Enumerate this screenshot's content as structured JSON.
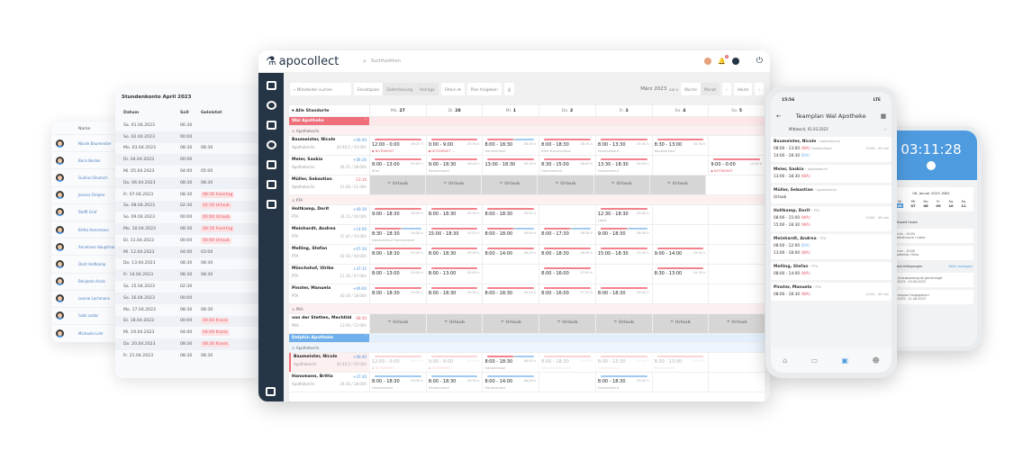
{
  "names_card": {
    "header": "Name",
    "items": [
      "Nicole Baumeister",
      "Boris Becker",
      "Gudrun Deutsch",
      "Jessica Fimpler",
      "Steffi Graf",
      "Britta Hansmann",
      "Anneliese Hauptmann",
      "Dorit Holtkamp",
      "Benjamin Krols",
      "Leonie Lachmann",
      "Gabi Ledac",
      "Michaela Lehr"
    ]
  },
  "stundenkonto": {
    "title": "Stundenkonto April 2023",
    "columns": [
      "Datum",
      "Soll",
      "Geleistet"
    ],
    "rows": [
      [
        "Sa. 01.04.2023",
        "06:30",
        ""
      ],
      [
        "So. 02.04.2023",
        "00:00",
        ""
      ],
      [
        "Mo. 03.04.2023",
        "08:30",
        "08:30"
      ],
      [
        "Di. 04.04.2023",
        "00:00",
        ""
      ],
      [
        "Mi. 05.04.2023",
        "04:00",
        "05:00"
      ],
      [
        "Do. 06.04.2023",
        "08:30",
        "08:30"
      ],
      [
        "Fr. 07.04.2023",
        "08:30",
        "08:30 Feiertag"
      ],
      [
        "Sa. 08.04.2023",
        "02:30",
        "02:30 Urlaub"
      ],
      [
        "So. 09.04.2023",
        "00:00",
        "00:00 Urlaub"
      ],
      [
        "Mo. 10.04.2023",
        "08:30",
        "08:30 Feiertag"
      ],
      [
        "Di. 11.04.2023",
        "00:00",
        "00:00 Urlaub"
      ],
      [
        "Mi. 12.04.2023",
        "04:00",
        "03:00"
      ],
      [
        "Do. 13.04.2023",
        "08:30",
        "08:30"
      ],
      [
        "Fr. 14.04.2023",
        "08:30",
        "08:30"
      ],
      [
        "Sa. 15.04.2023",
        "02:30",
        ""
      ],
      [
        "So. 16.04.2023",
        "00:00",
        ""
      ],
      [
        "Mo. 17.04.2023",
        "08:30",
        "08:30"
      ],
      [
        "Di. 18.04.2023",
        "00:00",
        "00:00 Krank"
      ],
      [
        "Mi. 19.04.2023",
        "04:00",
        "04:00 Krank"
      ],
      [
        "Do. 20.04.2023",
        "08:30",
        "08:30 Krank"
      ],
      [
        "Fr. 21.04.2023",
        "08:30",
        "08:30"
      ]
    ]
  },
  "app": {
    "logo": "apocollect",
    "search_placeholder": "Suchfunktion",
    "notification_count": "0",
    "toolbar": {
      "employee_search": "Mitarbeiter suchen",
      "tabs": [
        "Einsatzplan",
        "Zeiterfassung",
        "Anträge"
      ],
      "filter": "Filtern",
      "release": "Plan freigeben",
      "month": "März 2023",
      "week": "KW 9",
      "views": [
        "Woche",
        "Monat"
      ],
      "today": "Heute"
    },
    "grid": {
      "location_filter": "Alle Standorte",
      "days": [
        [
          "Mo.",
          "27"
        ],
        [
          "Di.",
          "28"
        ],
        [
          "Mi.",
          "1"
        ],
        [
          "Do.",
          "2"
        ],
        [
          "Fr.",
          "3"
        ],
        [
          "Sa.",
          "4"
        ],
        [
          "So.",
          "5"
        ]
      ],
      "urlaub_label": "Urlaub",
      "rows": [
        {
          "type": "loc",
          "label": "Wal Apotheke",
          "color": "#ef6f7b"
        },
        {
          "type": "role",
          "label": "Apotheker/in"
        },
        {
          "type": "p",
          "name": "Baumeister, Nicole",
          "role": "Apotheker/in",
          "balance": "+06:40",
          "hours": "42:40,5 / 35:00h",
          "cells": [
            {
              "t": "12:00 - 0:00",
              "h": "06:47 h",
              "n": "NOTDIENST",
              "nd": true,
              "b": "red"
            },
            {
              "t": "0:00 - 9:00",
              "h": "05:34 h",
              "n": "NOTDIENST ...",
              "nd": true,
              "b": "red"
            },
            {
              "t": "8:00 - 18:30",
              "h": "08:45 h",
              "n": "Handverkauf",
              "b": "mix"
            },
            {
              "t": "8:00 - 18:30",
              "h": "08:45 h",
              "n": "Büro Handverkauf",
              "b": "red"
            },
            {
              "t": "8:00 - 13:30",
              "h": "05:30 h",
              "n": "Handverkauf",
              "b": "red"
            },
            {
              "t": "8:30 - 13:00",
              "h": "04:30 h",
              "n": "Handverkauf",
              "b": "red"
            },
            null
          ]
        },
        {
          "type": "p",
          "name": "Meier, Saskia",
          "role": "Apotheker/in",
          "balance": "+06:36",
          "hours": "44:21 / 38:00h",
          "cells": [
            {
              "t": "8:00 - 13:00",
              "h": "05:00 h",
              "n": "Büro",
              "b": "red"
            },
            {
              "t": "9:00 - 18:30",
              "h": "08:45 h",
              "n": "Handverkauf",
              "b": "red"
            },
            {
              "t": "13:00 - 18:30",
              "h": "05:30 h",
              "n": "",
              "b": "red"
            },
            {
              "t": "8:30 - 15:00",
              "h": "06:00 h",
              "n": "Handverkauf",
              "b": "red"
            },
            {
              "t": "13:30 - 18:30",
              "h": "05:00 h",
              "n": "Handverkauf",
              "b": "red"
            },
            null,
            {
              "t": "9:00 - 0:00",
              "h": "14:06 h",
              "n": "NOTDIENST",
              "nd": true,
              "b": "red"
            }
          ]
        },
        {
          "type": "p",
          "name": "Müller, Sebastian",
          "role": "Apotheker/in",
          "balance": "-13:16",
          "neg": true,
          "hours": "21:00 / 21:00h",
          "cells": [
            "U",
            "U",
            "U",
            "U",
            "U",
            "U",
            null
          ]
        },
        {
          "type": "role",
          "label": "PTA"
        },
        {
          "type": "p",
          "name": "Holtkamp, Dorit",
          "role": "PTA",
          "balance": "+40:39",
          "hours": "34:15 / 40:00h",
          "cells": [
            {
              "t": "9:00 - 18:30",
              "h": "08:45 h",
              "n": "",
              "b": "red"
            },
            {
              "t": "8:00 - 18:30",
              "h": "09:45 h",
              "n": "",
              "b": "red"
            },
            {
              "t": "8:00 - 18:30",
              "h": "09:45 h",
              "n": "",
              "b": "red"
            },
            null,
            {
              "t": "12:30 - 18:30",
              "h": "06:00 h",
              "n": "Labor",
              "b": "red"
            },
            null,
            null
          ]
        },
        {
          "type": "p",
          "name": "Meinhardt, Andrea",
          "role": "PTA",
          "balance": "+14:00",
          "hours": "37:45 / 35:00h",
          "cells": [
            {
              "t": "8:30 - 18:30",
              "h": "08:28 h",
              "n": "Handverkauf Handverkauf",
              "b": "mix"
            },
            {
              "t": "15:00 - 18:30",
              "h": "03:15 h",
              "n": "",
              "b": "red"
            },
            {
              "t": "8:00 - 18:00",
              "h": "09:00 h",
              "n": "",
              "b": "mix"
            },
            {
              "t": "8:00 - 17:30",
              "h": "08:38 h",
              "n": "",
              "b": "mix"
            },
            {
              "t": "9:00 - 18:30",
              "h": "08:30 h",
              "n": "",
              "b": "mix"
            },
            null,
            null
          ]
        },
        {
          "type": "p",
          "name": "Melling, Stefan",
          "role": "PTA",
          "balance": "+07:30",
          "hours": "42:30 / 40:00h",
          "cells": [
            {
              "t": "8:00 - 18:30",
              "h": "09:45 h",
              "n": "",
              "b": "red"
            },
            {
              "t": "8:00 - 18:30",
              "h": "09:45 h",
              "n": "",
              "b": "red"
            },
            {
              "t": "8:00 - 14:00",
              "h": "06:00 h",
              "n": "",
              "b": "red"
            },
            {
              "t": "8:00 - 18:30",
              "h": "08:38 h",
              "n": "",
              "b": "red"
            },
            {
              "t": "15:00 - 18:30",
              "h": "03:30 h",
              "n": "",
              "b": "red"
            },
            {
              "t": "9:00 - 14:00",
              "h": "05:00 h",
              "n": "",
              "b": "red"
            },
            null
          ]
        },
        {
          "type": "p",
          "name": "Mönchshof, Ulrike",
          "role": "PTA",
          "balance": "+37:15",
          "hours": "21:30 / 27:00h",
          "cells": [
            {
              "t": "8:00 - 13:00",
              "h": "05:00 h",
              "n": "",
              "b": "red"
            },
            {
              "t": "8:00 - 13:00",
              "h": "05:00 h",
              "n": "",
              "b": "red"
            },
            null,
            {
              "t": "8:00 - 16:00",
              "h": "07:00 h",
              "n": "",
              "b": "red"
            },
            null,
            {
              "t": "8:30 - 13:00",
              "h": "04:30 h",
              "n": "",
              "b": "red"
            },
            null
          ]
        },
        {
          "type": "p",
          "name": "Pinster, Manuela",
          "role": "PTA",
          "balance": "+06:00",
          "hours": "40:30 / 18:00h",
          "cells": [
            {
              "t": "8:00 - 18:30",
              "h": "09:45 h",
              "n": "",
              "b": "red"
            },
            {
              "t": "8:00 - 18:30",
              "h": "09:45 h",
              "n": "",
              "b": "red"
            },
            {
              "t": "8:00 - 18:30",
              "h": "09:45 h",
              "n": "",
              "b": "red"
            },
            {
              "t": "8:00 - 16:00",
              "h": "07:30 h",
              "n": "",
              "b": "red"
            },
            {
              "t": "8:00 - 18:30",
              "h": "09:45 h",
              "n": "",
              "b": "red"
            },
            null,
            null
          ]
        },
        {
          "type": "role",
          "label": "PKA"
        },
        {
          "type": "p",
          "name": "von der Stetten, Mechtild",
          "role": "PKA",
          "balance": "-08:30",
          "neg": true,
          "hours": "12:00 / 12:00h",
          "cells": [
            "U",
            "U",
            "U",
            "U",
            "U",
            "U",
            "U"
          ]
        },
        {
          "type": "loc",
          "label": "Delphin Apotheke",
          "color": "#6fb0ec",
          "blue": true
        },
        {
          "type": "role",
          "label": "Apotheker/in",
          "blue": true
        },
        {
          "type": "p",
          "name": "Baumeister, Nicole",
          "role": "Apotheker/in",
          "balance": "+06:40",
          "hours": "42:40,5 / 35:00h",
          "sel": true,
          "cells": [
            {
              "t": "12:00 - 0:00",
              "h": "06:47 h",
              "n": "NOTDIENST",
              "nd": true,
              "b": "red",
              "f": true
            },
            {
              "t": "0:00 - 9:00",
              "h": "05:34 h",
              "n": "NOTDIENST",
              "nd": true,
              "b": "red",
              "f": true
            },
            {
              "t": "8:00 - 18:30",
              "h": "08:45 h",
              "n": "Handverkauf",
              "b": "mix"
            },
            {
              "t": "8:00 - 18:30",
              "h": "08:45 h",
              "n": "Büro Handverkauf",
              "b": "red",
              "f": true
            },
            {
              "t": "8:00 - 13:30",
              "h": "05:30 h",
              "n": "Handverkauf",
              "b": "red",
              "f": true
            },
            {
              "t": "8:30 - 13:00",
              "h": "04:30 h",
              "n": "Handverkauf",
              "b": "red",
              "f": true
            },
            null
          ]
        },
        {
          "type": "p",
          "name": "Hansmann, Britta",
          "role": "Apotheker/in",
          "balance": "+37:30",
          "hours": "34:30 / 18:00h",
          "cells": [
            {
              "t": "8:00 - 18:30",
              "h": "09:30 h",
              "n": "Handverkauf",
              "b": "blue"
            },
            {
              "t": "8:00 - 18:30",
              "h": "09:30 h",
              "n": "Handverkauf",
              "b": "blue"
            },
            {
              "t": "8:00 - 14:00",
              "h": "06:00 h",
              "n": "Handverkauf",
              "b": "blue"
            },
            null,
            {
              "t": "8:00 - 18:30",
              "h": "09:30 h",
              "n": "Handverkauf",
              "b": "blue"
            },
            null,
            null
          ]
        }
      ]
    }
  },
  "phone1": {
    "time": "15:56",
    "network": "LTE",
    "title": "Teamplan Wal Apotheke",
    "date": "Mittwoch, 01.03.2023",
    "cards": [
      {
        "name": "Baumeister, Nicole",
        "role": "Apotheker/in",
        "lines": [
          [
            "08:00 - 13:00",
            "(WA)",
            "Handverkauf",
            "13:00 - 45 min"
          ],
          [
            "14:00 - 18:30",
            "(DA)",
            "",
            ""
          ]
        ]
      },
      {
        "name": "Meier, Saskia",
        "role": "Apotheker/in",
        "lines": [
          [
            "13:00 - 18:30",
            "(WA)",
            "",
            ""
          ]
        ]
      },
      {
        "name": "Müller, Sebastian",
        "role": "Apotheker/in",
        "lines": [
          [
            "Urlaub",
            "",
            "",
            ""
          ]
        ]
      },
      {
        "name": "Holtkamp, Dorit",
        "role": "PTA",
        "lines": [
          [
            "08:00 - 15:00",
            "(WA)",
            "",
            "13:00 - 45 min"
          ],
          [
            "15:00 - 18:30",
            "(WA)",
            "",
            ""
          ]
        ]
      },
      {
        "name": "Meinhardt, Andrea",
        "role": "PTA",
        "lines": [
          [
            "08:00 - 12:00",
            "(DA)",
            "",
            ""
          ],
          [
            "13:00 - 18:00",
            "(WA)",
            "",
            ""
          ]
        ]
      },
      {
        "name": "Melling, Stefan",
        "role": "PTA",
        "lines": [
          [
            "08:00 - 14:00",
            "(WA)",
            "",
            ""
          ]
        ]
      },
      {
        "name": "Pinster, Manuela",
        "role": "PTA",
        "lines": [
          [
            "08:00 - 18:30",
            "(WA)",
            "",
            "14:00 - 45 min"
          ]
        ]
      }
    ]
  },
  "phone2": {
    "timer": "03:11:28",
    "week_label": "06. Januar 2023, KW2",
    "days": [
      [
        "Di",
        "06"
      ],
      [
        "Mi",
        "07"
      ],
      [
        "Do",
        "08"
      ],
      [
        "Fr",
        "09"
      ],
      [
        "Sa",
        "10"
      ],
      [
        "So",
        "11"
      ]
    ],
    "section1": "Arbeitszeit heute",
    "shift1": "40 min - 10:00",
    "shift1_loc": "Freiehdmucce / Labor",
    "shift2": "40 min - 10:00",
    "shift2_loc": "Stadtmitte / Büro",
    "section2": "Benachrichtigungen",
    "more": "Mehr anzeigen",
    "notes": [
      [
        "Ihr Urlaubsantrag ist genehmigt!",
        "05.2023 - 19.05.2023"
      ],
      [
        "Dienstplan freigegeben!",
        "02.2023 - 11.06.2023"
      ]
    ]
  }
}
